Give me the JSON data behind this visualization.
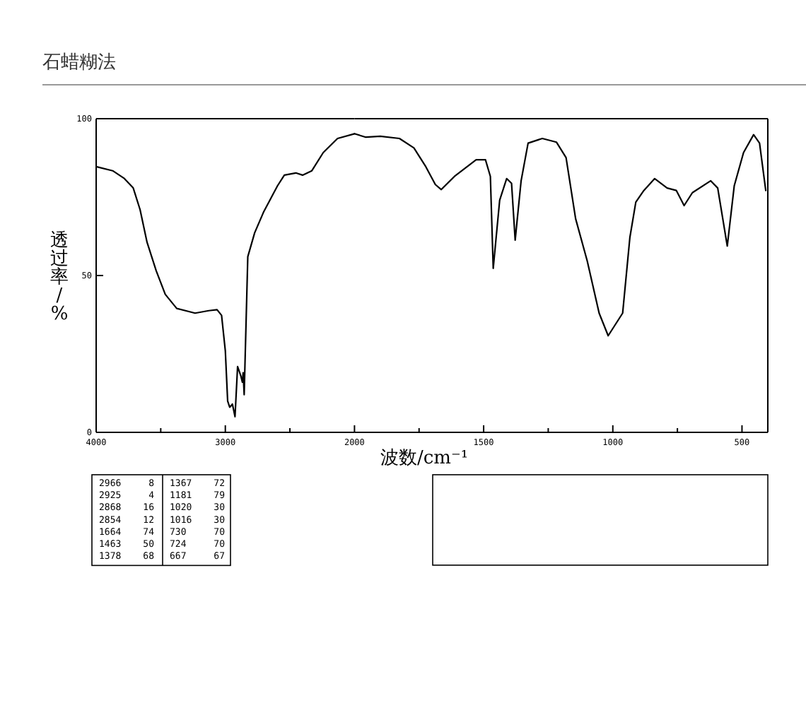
{
  "chart_data": [
    {
      "type": "line",
      "title": "石蜡糊法",
      "ylabel": "透过率/%",
      "x": [
        4000,
        3872,
        3784,
        3713,
        3660,
        3606,
        3535,
        3465,
        3376,
        3234,
        3128,
        3064,
        3029,
        3000,
        2982,
        2966,
        2945,
        2925,
        2905,
        2880,
        2868,
        2862,
        2854,
        2826,
        2773,
        2702,
        2596,
        2543,
        2454,
        2402,
        2330,
        2242,
        2131,
        2000
      ],
      "values": [
        84.7,
        83.4,
        81,
        77.9,
        71,
        60.6,
        51.5,
        44,
        39.5,
        38,
        38.8,
        39.1,
        37.3,
        26,
        10,
        8,
        9,
        5,
        21,
        18,
        16,
        19,
        12,
        56,
        63.6,
        70.4,
        78.6,
        82,
        82.7,
        82,
        83.4,
        89.2,
        93.7,
        95.2
      ],
      "color": "#000000",
      "xlim": [
        4000,
        2000
      ],
      "xticks": [
        4000,
        {
          "value": 3500,
          "label": null
        },
        3000,
        {
          "value": 2500,
          "label": null
        },
        2000
      ],
      "ylim": [
        0,
        100
      ],
      "yticks": [
        0,
        50,
        100
      ],
      "grid": false
    },
    {
      "type": "line",
      "xlabel": "波数/cm⁻¹",
      "x": [
        2000,
        1956,
        1900,
        1826,
        1770,
        1724,
        1687,
        1664,
        1613,
        1529,
        1493,
        1474,
        1463,
        1438,
        1411,
        1392,
        1378,
        1355,
        1328,
        1273,
        1218,
        1181,
        1144,
        1099,
        1053,
        1018,
        962,
        934,
        911,
        880,
        838,
        790,
        754,
        724,
        692,
        621,
        594,
        557,
        530,
        494,
        455,
        432,
        408
      ],
      "values": [
        95.2,
        94.1,
        94.4,
        93.7,
        90.7,
        84.7,
        79,
        77.4,
        81.6,
        86.9,
        86.9,
        81.6,
        52.3,
        74,
        80.9,
        79.4,
        61.3,
        80.2,
        92.2,
        93.7,
        92.5,
        87.6,
        68.1,
        54.6,
        38,
        30.8,
        38,
        62.1,
        73.4,
        77.1,
        80.9,
        77.9,
        77.1,
        72.3,
        76.4,
        80.2,
        77.9,
        59.4,
        78.6,
        89.2,
        94.9,
        92.2,
        77.1
      ],
      "color": "#000000",
      "xlim": [
        2000,
        400
      ],
      "xticks": [
        {
          "value": 1750,
          "label": null
        },
        1500,
        {
          "value": 1250,
          "label": null
        },
        1000,
        {
          "value": 750,
          "label": null
        },
        500
      ],
      "ylim": [
        0,
        100
      ],
      "tick_labels": "x",
      "grid": false,
      "annotations": [
        "2966 8",
        "2925 4",
        "2868 16",
        "2854 12",
        "1664 74",
        "1463 50",
        "1378 68",
        "1367 72",
        "1181 79",
        "1020 30",
        "1016 30",
        "730 70",
        "724 70",
        "667 67"
      ]
    }
  ]
}
